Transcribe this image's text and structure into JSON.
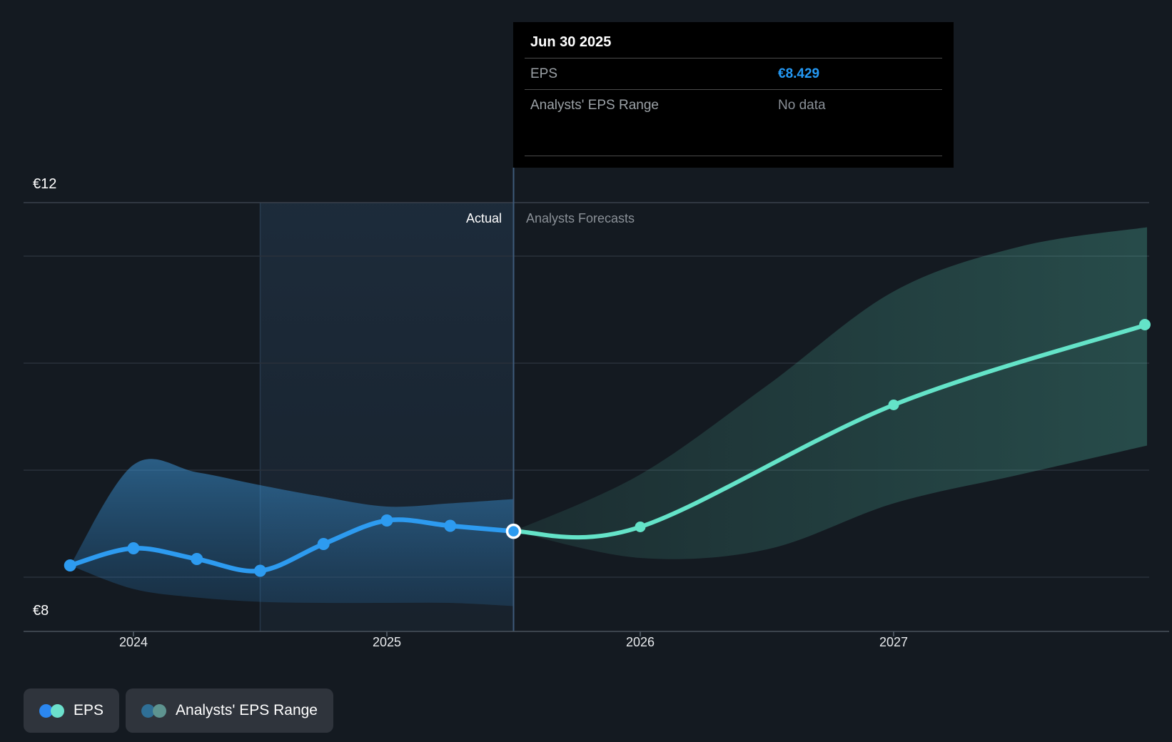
{
  "tooltip": {
    "title": "Jun 30 2025",
    "rows": [
      {
        "label": "EPS",
        "value": "€8.429"
      },
      {
        "label": "Analysts' EPS Range",
        "value": "No data"
      }
    ]
  },
  "annotations": {
    "actual_label": "Actual",
    "forecast_label": "Analysts Forecasts"
  },
  "axis": {
    "y_top_label": "€12",
    "y_bottom_label": "€8",
    "x_ticks": [
      {
        "t": 2024,
        "label": "2024"
      },
      {
        "t": 2025,
        "label": "2025"
      },
      {
        "t": 2026,
        "label": "2026"
      },
      {
        "t": 2027,
        "label": "2027"
      }
    ]
  },
  "legend": {
    "items": [
      {
        "label": "EPS",
        "dots": [
          "#2B87F0",
          "#6CE0CC"
        ]
      },
      {
        "label": "Analysts' EPS Range",
        "dots": [
          "#2F6F96",
          "#5E9490"
        ]
      }
    ]
  },
  "colors": {
    "background": "#141A21",
    "eps_line": "#2D9BF0",
    "forecast_line": "#64E3C8",
    "gridline": "#2A313B",
    "gridline_top": "#39414C",
    "axis_line": "#49525C",
    "divider_line": "#3E5B7A",
    "highlight_border": "#6EA8E0",
    "tooltip_value_blue": "#2499F5",
    "muted_text": "#8A9097",
    "legend_chip_bg": "#2F343C"
  },
  "chart_data": {
    "type": "line",
    "currency": "EUR",
    "ylabel": "EPS (€)",
    "ylim": [
      7.5,
      12
    ],
    "x_domain": [
      2023.75,
      2028
    ],
    "y_gridlines": [
      8,
      9,
      10,
      11
    ],
    "divider_t": 2025.5,
    "divider_date": "Jun 30 2025",
    "highlight_span": [
      2024.5,
      2025.5
    ],
    "series": [
      {
        "name": "EPS (actual)",
        "points": [
          {
            "date": "Sep 30 2023",
            "t": 2023.75,
            "value": 8.11
          },
          {
            "date": "Dec 31 2023",
            "t": 2024.0,
            "value": 8.27
          },
          {
            "date": "Mar 31 2024",
            "t": 2024.25,
            "value": 8.17
          },
          {
            "date": "Jun 30 2024",
            "t": 2024.5,
            "value": 8.06
          },
          {
            "date": "Sep 30 2024",
            "t": 2024.75,
            "value": 8.31
          },
          {
            "date": "Dec 31 2024",
            "t": 2025.0,
            "value": 8.53
          },
          {
            "date": "Mar 31 2025",
            "t": 2025.25,
            "value": 8.48
          },
          {
            "date": "Jun 30 2025",
            "t": 2025.5,
            "value": 8.429
          }
        ]
      },
      {
        "name": "EPS (analysts forecast)",
        "points": [
          {
            "date": "Jun 30 2025",
            "t": 2025.5,
            "value": 8.429
          },
          {
            "date": "Dec 31 2025",
            "t": 2026.0,
            "value": 8.47
          },
          {
            "date": "Dec 31 2026",
            "t": 2027.0,
            "value": 9.61
          },
          {
            "date": "Dec 31 2027",
            "t": 2028.0,
            "value": 10.36
          }
        ]
      }
    ],
    "actual_range": [
      {
        "t": 2023.75,
        "lo": 8.11,
        "hi": 8.11
      },
      {
        "t": 2024.0,
        "lo": 7.89,
        "hi": 9.05
      },
      {
        "t": 2024.25,
        "lo": 7.81,
        "hi": 8.98
      },
      {
        "t": 2024.5,
        "lo": 7.77,
        "hi": 8.86
      },
      {
        "t": 2024.75,
        "lo": 7.76,
        "hi": 8.75
      },
      {
        "t": 2025.0,
        "lo": 7.76,
        "hi": 8.66
      },
      {
        "t": 2025.25,
        "lo": 7.76,
        "hi": 8.69
      },
      {
        "t": 2025.5,
        "lo": 7.73,
        "hi": 8.73
      }
    ],
    "forecast_range": [
      {
        "t": 2025.5,
        "lo": 8.429,
        "hi": 8.429
      },
      {
        "t": 2026.0,
        "lo": 8.18,
        "hi": 8.96
      },
      {
        "t": 2026.5,
        "lo": 8.26,
        "hi": 9.79
      },
      {
        "t": 2027.0,
        "lo": 8.69,
        "hi": 10.67
      },
      {
        "t": 2027.5,
        "lo": 8.96,
        "hi": 11.09
      },
      {
        "t": 2028.0,
        "lo": 9.23,
        "hi": 11.27
      }
    ]
  }
}
